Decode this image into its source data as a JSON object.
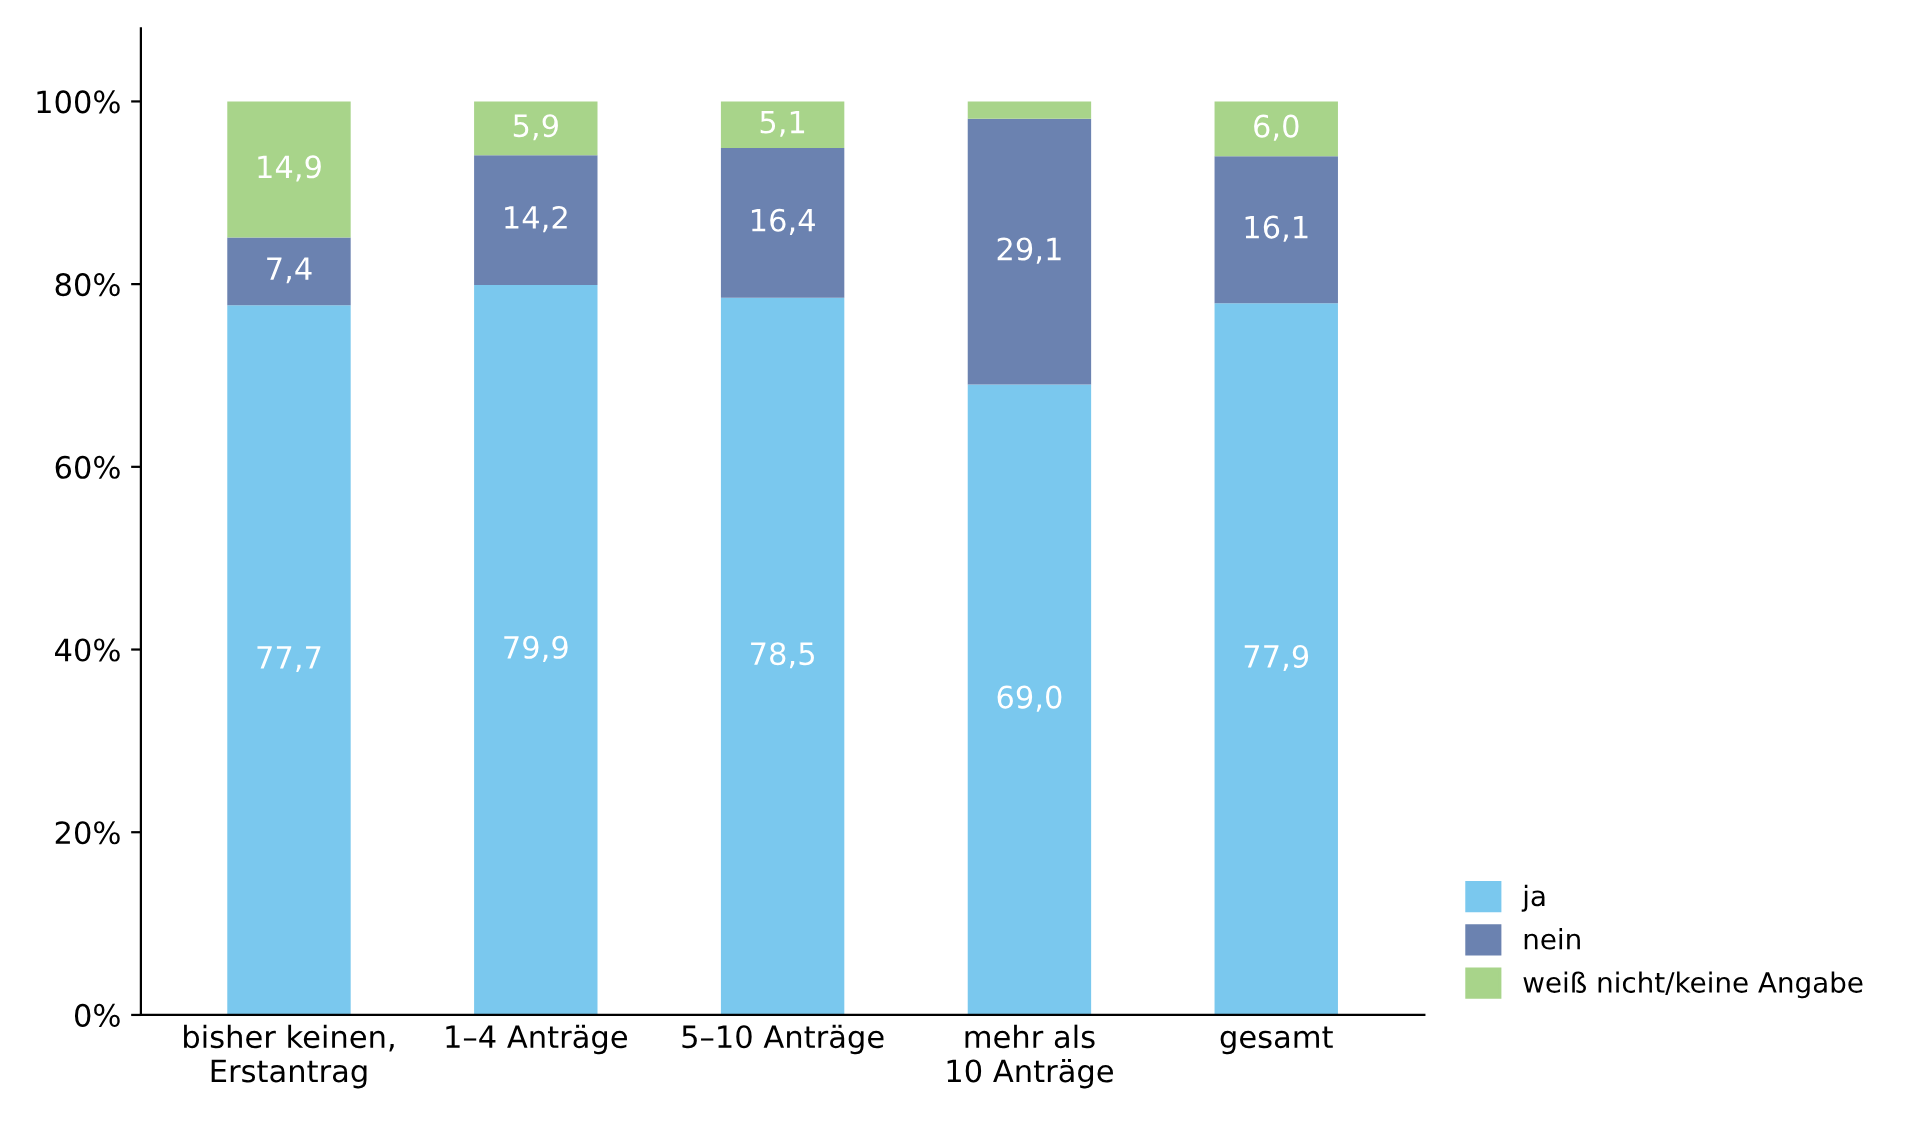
{
  "chart_data": {
    "type": "bar",
    "stacked": true,
    "categories": [
      "bisher keinen,\nErstantrag",
      "1–4 Anträge",
      "5–10 Anträge",
      "mehr als\n10 Anträge",
      "gesamt"
    ],
    "series": [
      {
        "name": "ja",
        "color": "#7ac8ee",
        "values": [
          77.7,
          79.9,
          78.5,
          69.0,
          77.9
        ],
        "value_labels": [
          "77,7",
          "79,9",
          "78,5",
          "69,0",
          "77,9"
        ]
      },
      {
        "name": "nein",
        "color": "#6b82b0",
        "values": [
          7.4,
          14.2,
          16.4,
          29.1,
          16.1
        ],
        "value_labels": [
          "7,4",
          "14,2",
          "16,4",
          "29,1",
          "16,1"
        ]
      },
      {
        "name": "weiß nicht/keine Angabe",
        "color": "#a8d48a",
        "values": [
          14.9,
          5.9,
          5.1,
          1.9,
          6.0
        ],
        "value_labels": [
          "14,9",
          "5,9",
          "5,1",
          null,
          "6,0"
        ]
      }
    ],
    "ylim": [
      0,
      108
    ],
    "yticks": [
      {
        "value": 0,
        "label": "0%"
      },
      {
        "value": 20,
        "label": "20%"
      },
      {
        "value": 40,
        "label": "40%"
      },
      {
        "value": 60,
        "label": "60%"
      },
      {
        "value": 80,
        "label": "80%"
      },
      {
        "value": 100,
        "label": "100%"
      }
    ],
    "grid": false,
    "legend": "bottom right"
  }
}
